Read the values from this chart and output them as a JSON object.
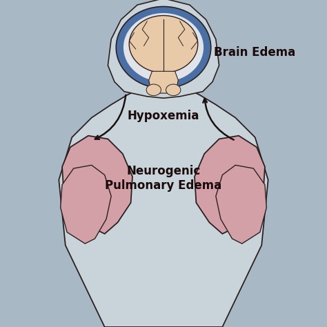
{
  "bg_color": "#a8b8c4",
  "body_color": "#c8d4da",
  "body_outline": "#2a2020",
  "brain_skin_color": "#e8c9a8",
  "brain_outline": "#2a2020",
  "brain_blue_ring": "#4a6fa5",
  "brain_white_ring": "#e0e4e8",
  "lung_color": "#d4a0a8",
  "lung_outline": "#2a2020",
  "arrow_color": "#1a1010",
  "label_brain": "Brain Edema",
  "label_hypoxemia": "Hypoxemia",
  "label_lung": "Neurogenic\nPulmonary Edema",
  "label_color": "#1a0a0a",
  "label_fontsize_brain": 12,
  "label_fontsize_hyp": 12,
  "label_fontsize_lung": 12
}
